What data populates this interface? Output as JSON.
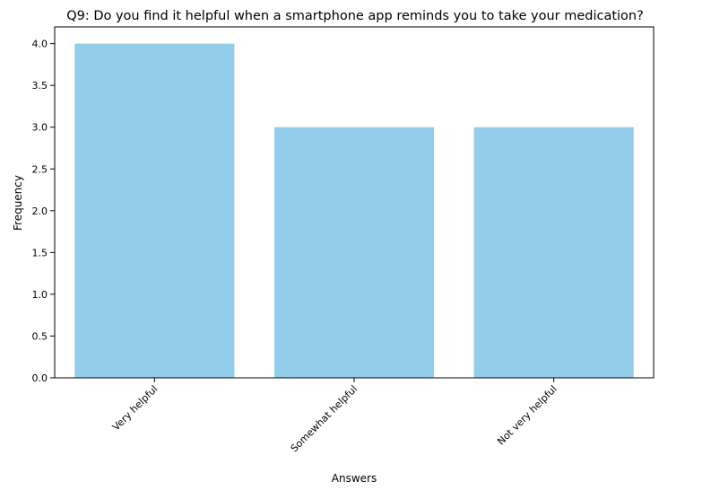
{
  "chart_data": {
    "type": "bar",
    "title": "Q9: Do you find it helpful when a smartphone app reminds you to take your medication?",
    "xlabel": "Answers",
    "ylabel": "Frequency",
    "categories": [
      "Very helpful",
      "Somewhat helpful",
      "Not very helpful"
    ],
    "values": [
      4,
      3,
      3
    ],
    "ylim": [
      0,
      4.2
    ],
    "yticks": [
      "0.0",
      "0.5",
      "1.0",
      "1.5",
      "2.0",
      "2.5",
      "3.0",
      "3.5",
      "4.0"
    ],
    "bar_color": "#92cdea",
    "grid": false,
    "legend": "none"
  }
}
